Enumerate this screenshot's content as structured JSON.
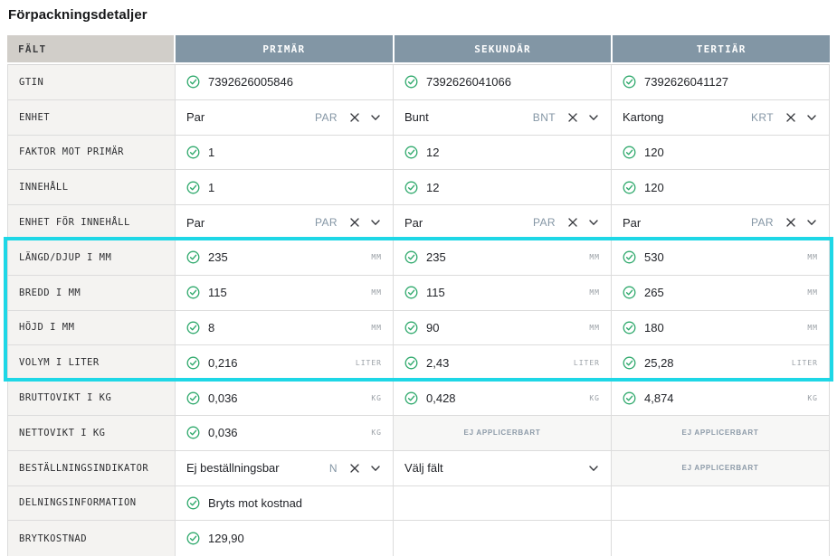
{
  "page": {
    "title": "Förpackningsdetaljer"
  },
  "colors": {
    "header_bg": "#8296a5",
    "field_header_bg": "#d1cec9",
    "check_green": "#2fa96c",
    "code_gray_blue": "#8496a5",
    "highlight_cyan": "#1ed7e6",
    "na_bg": "#f7f7f6"
  },
  "table": {
    "columns": [
      "FÄLT",
      "PRIMÄR",
      "SEKUNDÄR",
      "TERTIÄR"
    ],
    "na_label": "EJ APPLICERBART",
    "rows": [
      {
        "label": "GTIN",
        "highlighted": false,
        "cells": [
          {
            "type": "check",
            "value": "7392626005846"
          },
          {
            "type": "check",
            "value": "7392626041066"
          },
          {
            "type": "check",
            "value": "7392626041127"
          }
        ]
      },
      {
        "label": "ENHET",
        "highlighted": false,
        "cells": [
          {
            "type": "select",
            "value": "Par",
            "code": "PAR",
            "clearable": true
          },
          {
            "type": "select",
            "value": "Bunt",
            "code": "BNT",
            "clearable": true
          },
          {
            "type": "select",
            "value": "Kartong",
            "code": "KRT",
            "clearable": true
          }
        ]
      },
      {
        "label": "FAKTOR MOT PRIMÄR",
        "highlighted": false,
        "cells": [
          {
            "type": "check",
            "value": "1"
          },
          {
            "type": "check",
            "value": "12"
          },
          {
            "type": "check",
            "value": "120"
          }
        ]
      },
      {
        "label": "INNEHÅLL",
        "highlighted": false,
        "cells": [
          {
            "type": "check",
            "value": "1"
          },
          {
            "type": "check",
            "value": "12"
          },
          {
            "type": "check",
            "value": "120"
          }
        ]
      },
      {
        "label": "ENHET FÖR INNEHÅLL",
        "highlighted": false,
        "cells": [
          {
            "type": "select",
            "value": "Par",
            "code": "PAR",
            "clearable": true
          },
          {
            "type": "select",
            "value": "Par",
            "code": "PAR",
            "clearable": true
          },
          {
            "type": "select",
            "value": "Par",
            "code": "PAR",
            "clearable": true
          }
        ]
      },
      {
        "label": "LÄNGD/DJUP I MM",
        "highlighted": true,
        "cells": [
          {
            "type": "check",
            "value": "235",
            "unit": "MM"
          },
          {
            "type": "check",
            "value": "235",
            "unit": "MM"
          },
          {
            "type": "check",
            "value": "530",
            "unit": "MM"
          }
        ]
      },
      {
        "label": "BREDD I MM",
        "highlighted": true,
        "cells": [
          {
            "type": "check",
            "value": "115",
            "unit": "MM"
          },
          {
            "type": "check",
            "value": "115",
            "unit": "MM"
          },
          {
            "type": "check",
            "value": "265",
            "unit": "MM"
          }
        ]
      },
      {
        "label": "HÖJD I MM",
        "highlighted": true,
        "cells": [
          {
            "type": "check",
            "value": "8",
            "unit": "MM"
          },
          {
            "type": "check",
            "value": "90",
            "unit": "MM"
          },
          {
            "type": "check",
            "value": "180",
            "unit": "MM"
          }
        ]
      },
      {
        "label": "VOLYM I LITER",
        "highlighted": true,
        "cells": [
          {
            "type": "check",
            "value": "0,216",
            "unit": "LITER"
          },
          {
            "type": "check",
            "value": "2,43",
            "unit": "LITER"
          },
          {
            "type": "check",
            "value": "25,28",
            "unit": "LITER"
          }
        ]
      },
      {
        "label": "BRUTTOVIKT I KG",
        "highlighted": false,
        "cells": [
          {
            "type": "check",
            "value": "0,036",
            "unit": "KG"
          },
          {
            "type": "check",
            "value": "0,428",
            "unit": "KG"
          },
          {
            "type": "check",
            "value": "4,874",
            "unit": "KG"
          }
        ]
      },
      {
        "label": "NETTOVIKT I KG",
        "highlighted": false,
        "cells": [
          {
            "type": "check",
            "value": "0,036",
            "unit": "KG"
          },
          {
            "type": "na"
          },
          {
            "type": "na"
          }
        ]
      },
      {
        "label": "BESTÄLLNINGSINDIKATOR",
        "highlighted": false,
        "cells": [
          {
            "type": "select",
            "value": "Ej beställningsbar",
            "code": "N",
            "clearable": true
          },
          {
            "type": "select",
            "value": "Välj fält",
            "clearable": false
          },
          {
            "type": "na"
          }
        ]
      },
      {
        "label": "DELNINGSINFORMATION",
        "highlighted": false,
        "cells": [
          {
            "type": "check",
            "value": "Bryts mot kostnad"
          },
          {
            "type": "empty"
          },
          {
            "type": "empty"
          }
        ]
      },
      {
        "label": "BRYTKOSTNAD",
        "highlighted": false,
        "cells": [
          {
            "type": "check",
            "value": "129,90"
          },
          {
            "type": "empty"
          },
          {
            "type": "empty"
          }
        ]
      }
    ]
  }
}
